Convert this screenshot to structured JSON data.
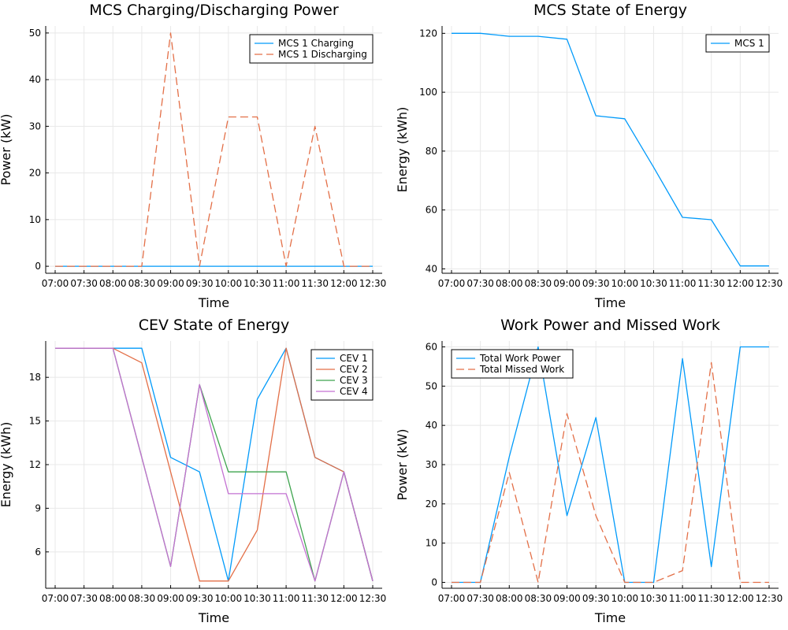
{
  "colors": {
    "blue": "#009AFA",
    "orange": "#E36F47",
    "green": "#3EA44E",
    "purple": "#C371D2"
  },
  "chart_data": [
    {
      "type": "line",
      "title": "MCS Charging/Discharging Power",
      "xlabel": "Time",
      "ylabel": "Power (kW)",
      "x": [
        "07:00",
        "07:30",
        "08:00",
        "08:30",
        "09:00",
        "09:30",
        "10:00",
        "10:30",
        "11:00",
        "11:30",
        "12:00",
        "12:30"
      ],
      "yticks": [
        0,
        10,
        20,
        30,
        40,
        50
      ],
      "ylim": [
        -1.5,
        51.5
      ],
      "grid": true,
      "legend": "top-right",
      "series": [
        {
          "name": "MCS 1 Charging",
          "color": "blue",
          "dash": false,
          "values": [
            0,
            0,
            0,
            0,
            0,
            0,
            0,
            0,
            0,
            0,
            0,
            0
          ]
        },
        {
          "name": "MCS 1 Discharging",
          "color": "orange",
          "dash": true,
          "values": [
            0,
            0,
            0,
            0,
            50,
            0,
            32,
            32,
            0,
            30,
            0,
            0
          ]
        }
      ]
    },
    {
      "type": "line",
      "title": "MCS State of Energy",
      "xlabel": "Time",
      "ylabel": "Energy (kWh)",
      "x": [
        "07:00",
        "07:30",
        "08:00",
        "08:30",
        "09:00",
        "09:30",
        "10:00",
        "10:30",
        "11:00",
        "11:30",
        "12:00",
        "12:30"
      ],
      "yticks": [
        40,
        60,
        80,
        100,
        120
      ],
      "ylim": [
        38.5,
        122.5
      ],
      "grid": true,
      "legend": "top-right",
      "series": [
        {
          "name": "MCS 1",
          "color": "blue",
          "dash": false,
          "values": [
            120,
            120,
            119,
            119,
            118,
            92,
            91,
            74.5,
            57.5,
            56.7,
            41,
            41
          ]
        }
      ]
    },
    {
      "type": "line",
      "title": "CEV State of Energy",
      "xlabel": "Time",
      "ylabel": "Energy (kWh)",
      "x": [
        "07:00",
        "07:30",
        "08:00",
        "08:30",
        "09:00",
        "09:30",
        "10:00",
        "10:30",
        "11:00",
        "11:30",
        "12:00",
        "12:30"
      ],
      "yticks": [
        6,
        9,
        12,
        15,
        18
      ],
      "ylim": [
        3.5,
        20.5
      ],
      "grid": true,
      "legend": "top-right",
      "series": [
        {
          "name": "CEV 1",
          "color": "blue",
          "dash": false,
          "values": [
            20,
            20,
            20,
            20,
            12.5,
            11.5,
            4,
            16.5,
            20,
            12.5,
            11.5,
            4
          ]
        },
        {
          "name": "CEV 2",
          "color": "orange",
          "dash": false,
          "values": [
            20,
            20,
            20,
            19,
            11.5,
            4,
            4,
            7.5,
            20,
            12.5,
            11.5,
            4
          ]
        },
        {
          "name": "CEV 3",
          "color": "green",
          "dash": false,
          "values": [
            20,
            20,
            20,
            12.5,
            5,
            17.5,
            11.5,
            11.5,
            11.5,
            4,
            11.5,
            4
          ]
        },
        {
          "name": "CEV 4",
          "color": "purple",
          "dash": false,
          "values": [
            20,
            20,
            20,
            12.5,
            5,
            17.5,
            10,
            10,
            10,
            4,
            11.5,
            4
          ]
        }
      ]
    },
    {
      "type": "line",
      "title": "Work Power and Missed Work",
      "xlabel": "Time",
      "ylabel": "Power (kW)",
      "x": [
        "07:00",
        "07:30",
        "08:00",
        "08:30",
        "09:00",
        "09:30",
        "10:00",
        "10:30",
        "11:00",
        "11:30",
        "12:00",
        "12:30"
      ],
      "yticks": [
        0,
        10,
        20,
        30,
        40,
        50,
        60
      ],
      "ylim": [
        -1.5,
        61.5
      ],
      "grid": true,
      "legend": "top-left",
      "series": [
        {
          "name": "Total Work Power",
          "color": "blue",
          "dash": false,
          "values": [
            0,
            0,
            32,
            60,
            17,
            42,
            0,
            0,
            57,
            4,
            60,
            60
          ]
        },
        {
          "name": "Total Missed Work",
          "color": "orange",
          "dash": true,
          "values": [
            0,
            0,
            28,
            0,
            43,
            17,
            0,
            0,
            3,
            56,
            0,
            0
          ]
        }
      ]
    }
  ]
}
